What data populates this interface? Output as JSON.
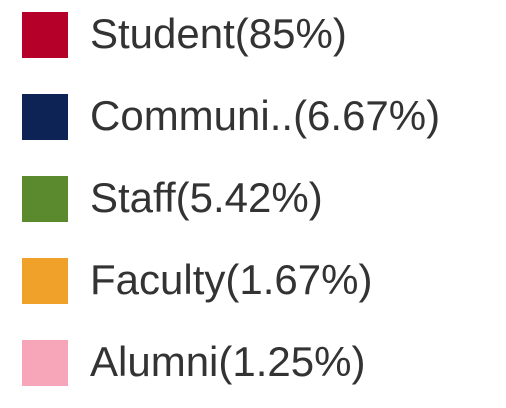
{
  "chart_data": {
    "type": "pie",
    "categories": [
      "Student",
      "Communi..",
      "Staff",
      "Faculty",
      "Alumni"
    ],
    "values": [
      85,
      6.67,
      5.42,
      1.67,
      1.25
    ],
    "value_labels": [
      "(85%)",
      "(6.67%)",
      "(5.42%)",
      "(1.67%)",
      "(1.25%)"
    ],
    "colors": [
      "#b5002a",
      "#0d2356",
      "#5b8a2e",
      "#f0a12a",
      "#f7a6b9"
    ]
  }
}
